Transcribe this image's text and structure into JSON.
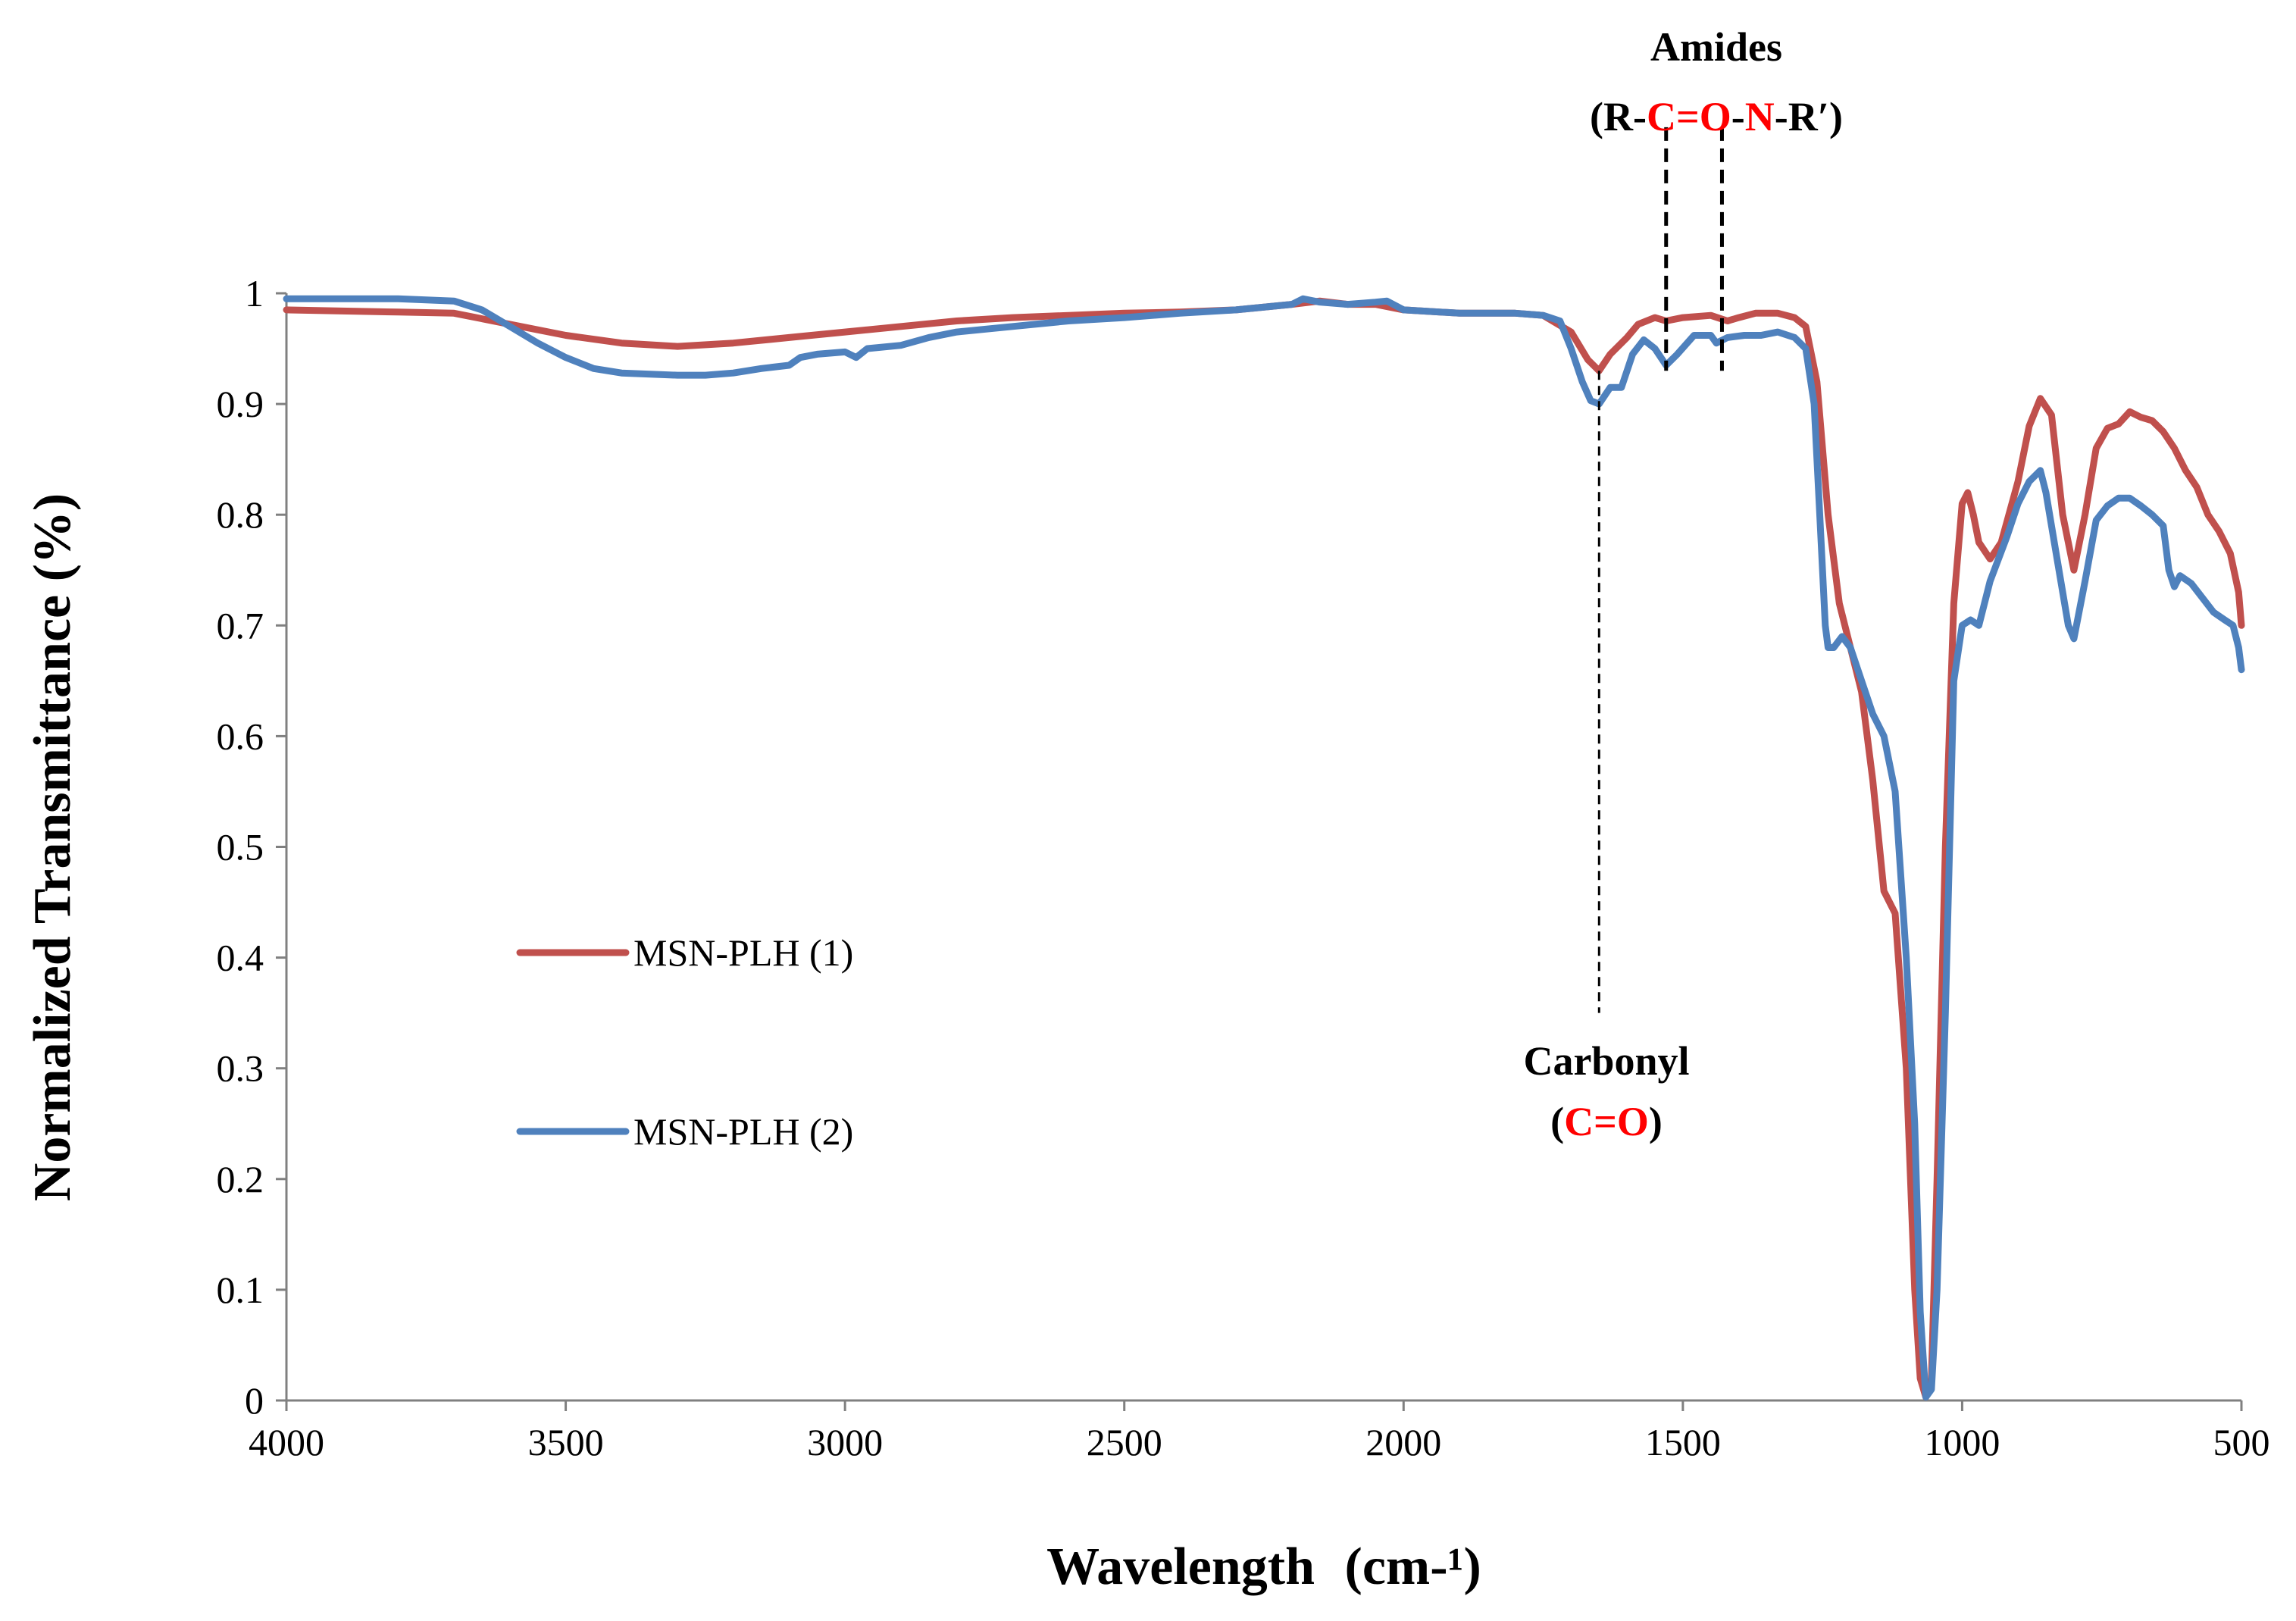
{
  "chart_data": {
    "type": "line",
    "title": "",
    "xlabel": "Wavelength",
    "xlabel_unit": "(cm-¹)",
    "ylabel": "Normalized Transmittance (%)",
    "xlim": [
      4000,
      500
    ],
    "ylim": [
      0,
      1
    ],
    "x_ticks": [
      "4000",
      "3500",
      "3000",
      "2500",
      "2000",
      "1500",
      "1000",
      "500"
    ],
    "x_tick_values": [
      4000,
      3500,
      3000,
      2500,
      2000,
      1500,
      1000,
      500
    ],
    "y_ticks": [
      "0",
      "0.1",
      "0.2",
      "0.3",
      "0.4",
      "0.5",
      "0.6",
      "0.7",
      "0.8",
      "0.9",
      "1"
    ],
    "y_tick_values": [
      0,
      0.1,
      0.2,
      0.3,
      0.4,
      0.5,
      0.6,
      0.7,
      0.8,
      0.9,
      1
    ],
    "grid": false,
    "legend_position": "left-center",
    "series": [
      {
        "name": "MSN-PLH (1)",
        "color": "#c0504d",
        "points": [
          [
            4000,
            0.985
          ],
          [
            3800,
            0.983
          ],
          [
            3700,
            0.982
          ],
          [
            3600,
            0.972
          ],
          [
            3500,
            0.962
          ],
          [
            3400,
            0.955
          ],
          [
            3300,
            0.952
          ],
          [
            3200,
            0.955
          ],
          [
            3100,
            0.96
          ],
          [
            3000,
            0.965
          ],
          [
            2900,
            0.97
          ],
          [
            2800,
            0.975
          ],
          [
            2700,
            0.978
          ],
          [
            2600,
            0.98
          ],
          [
            2500,
            0.982
          ],
          [
            2400,
            0.983
          ],
          [
            2300,
            0.985
          ],
          [
            2200,
            0.99
          ],
          [
            2150,
            0.993
          ],
          [
            2100,
            0.99
          ],
          [
            2050,
            0.99
          ],
          [
            2000,
            0.985
          ],
          [
            1900,
            0.982
          ],
          [
            1800,
            0.982
          ],
          [
            1750,
            0.98
          ],
          [
            1700,
            0.965
          ],
          [
            1670,
            0.94
          ],
          [
            1650,
            0.93
          ],
          [
            1630,
            0.945
          ],
          [
            1600,
            0.96
          ],
          [
            1580,
            0.972
          ],
          [
            1550,
            0.978
          ],
          [
            1530,
            0.975
          ],
          [
            1500,
            0.978
          ],
          [
            1450,
            0.98
          ],
          [
            1420,
            0.975
          ],
          [
            1400,
            0.978
          ],
          [
            1370,
            0.982
          ],
          [
            1330,
            0.982
          ],
          [
            1300,
            0.978
          ],
          [
            1280,
            0.97
          ],
          [
            1260,
            0.92
          ],
          [
            1240,
            0.8
          ],
          [
            1220,
            0.72
          ],
          [
            1200,
            0.68
          ],
          [
            1180,
            0.64
          ],
          [
            1160,
            0.56
          ],
          [
            1140,
            0.46
          ],
          [
            1120,
            0.44
          ],
          [
            1100,
            0.3
          ],
          [
            1085,
            0.1
          ],
          [
            1075,
            0.02
          ],
          [
            1065,
            0.003
          ],
          [
            1055,
            0.02
          ],
          [
            1045,
            0.2
          ],
          [
            1030,
            0.5
          ],
          [
            1015,
            0.72
          ],
          [
            1000,
            0.81
          ],
          [
            990,
            0.82
          ],
          [
            980,
            0.8
          ],
          [
            970,
            0.775
          ],
          [
            950,
            0.76
          ],
          [
            930,
            0.775
          ],
          [
            900,
            0.83
          ],
          [
            880,
            0.88
          ],
          [
            860,
            0.905
          ],
          [
            840,
            0.89
          ],
          [
            820,
            0.8
          ],
          [
            800,
            0.75
          ],
          [
            780,
            0.8
          ],
          [
            760,
            0.86
          ],
          [
            740,
            0.878
          ],
          [
            720,
            0.882
          ],
          [
            700,
            0.893
          ],
          [
            680,
            0.888
          ],
          [
            660,
            0.885
          ],
          [
            640,
            0.875
          ],
          [
            620,
            0.86
          ],
          [
            600,
            0.84
          ],
          [
            580,
            0.825
          ],
          [
            560,
            0.8
          ],
          [
            540,
            0.785
          ],
          [
            520,
            0.765
          ],
          [
            505,
            0.73
          ],
          [
            500,
            0.7
          ]
        ]
      },
      {
        "name": "MSN-PLH (2)",
        "color": "#4f81bd",
        "points": [
          [
            4000,
            0.995
          ],
          [
            3900,
            0.995
          ],
          [
            3800,
            0.995
          ],
          [
            3700,
            0.993
          ],
          [
            3650,
            0.985
          ],
          [
            3600,
            0.97
          ],
          [
            3550,
            0.955
          ],
          [
            3500,
            0.942
          ],
          [
            3450,
            0.932
          ],
          [
            3400,
            0.928
          ],
          [
            3300,
            0.926
          ],
          [
            3250,
            0.926
          ],
          [
            3200,
            0.928
          ],
          [
            3150,
            0.932
          ],
          [
            3100,
            0.935
          ],
          [
            3080,
            0.942
          ],
          [
            3050,
            0.945
          ],
          [
            3000,
            0.947
          ],
          [
            2980,
            0.942
          ],
          [
            2960,
            0.95
          ],
          [
            2900,
            0.953
          ],
          [
            2850,
            0.96
          ],
          [
            2800,
            0.965
          ],
          [
            2700,
            0.97
          ],
          [
            2600,
            0.975
          ],
          [
            2500,
            0.978
          ],
          [
            2400,
            0.982
          ],
          [
            2300,
            0.985
          ],
          [
            2200,
            0.99
          ],
          [
            2180,
            0.995
          ],
          [
            2150,
            0.992
          ],
          [
            2100,
            0.99
          ],
          [
            2050,
            0.992
          ],
          [
            2030,
            0.993
          ],
          [
            2000,
            0.985
          ],
          [
            1900,
            0.982
          ],
          [
            1800,
            0.982
          ],
          [
            1750,
            0.98
          ],
          [
            1720,
            0.975
          ],
          [
            1700,
            0.95
          ],
          [
            1680,
            0.92
          ],
          [
            1665,
            0.903
          ],
          [
            1650,
            0.9
          ],
          [
            1630,
            0.915
          ],
          [
            1610,
            0.915
          ],
          [
            1590,
            0.945
          ],
          [
            1570,
            0.958
          ],
          [
            1550,
            0.95
          ],
          [
            1530,
            0.935
          ],
          [
            1510,
            0.945
          ],
          [
            1480,
            0.962
          ],
          [
            1450,
            0.962
          ],
          [
            1440,
            0.955
          ],
          [
            1420,
            0.96
          ],
          [
            1390,
            0.962
          ],
          [
            1360,
            0.962
          ],
          [
            1330,
            0.965
          ],
          [
            1300,
            0.96
          ],
          [
            1280,
            0.95
          ],
          [
            1265,
            0.9
          ],
          [
            1255,
            0.8
          ],
          [
            1245,
            0.7
          ],
          [
            1240,
            0.68
          ],
          [
            1230,
            0.68
          ],
          [
            1215,
            0.69
          ],
          [
            1200,
            0.68
          ],
          [
            1180,
            0.65
          ],
          [
            1160,
            0.62
          ],
          [
            1140,
            0.6
          ],
          [
            1120,
            0.55
          ],
          [
            1100,
            0.4
          ],
          [
            1085,
            0.25
          ],
          [
            1075,
            0.08
          ],
          [
            1065,
            0.003
          ],
          [
            1055,
            0.01
          ],
          [
            1045,
            0.1
          ],
          [
            1030,
            0.35
          ],
          [
            1015,
            0.65
          ],
          [
            1000,
            0.7
          ],
          [
            985,
            0.705
          ],
          [
            970,
            0.7
          ],
          [
            950,
            0.74
          ],
          [
            920,
            0.78
          ],
          [
            900,
            0.81
          ],
          [
            880,
            0.83
          ],
          [
            860,
            0.84
          ],
          [
            850,
            0.82
          ],
          [
            830,
            0.76
          ],
          [
            810,
            0.7
          ],
          [
            800,
            0.688
          ],
          [
            780,
            0.74
          ],
          [
            760,
            0.795
          ],
          [
            740,
            0.808
          ],
          [
            720,
            0.815
          ],
          [
            700,
            0.815
          ],
          [
            680,
            0.808
          ],
          [
            660,
            0.8
          ],
          [
            640,
            0.79
          ],
          [
            630,
            0.75
          ],
          [
            620,
            0.735
          ],
          [
            610,
            0.745
          ],
          [
            590,
            0.738
          ],
          [
            570,
            0.725
          ],
          [
            550,
            0.712
          ],
          [
            530,
            0.705
          ],
          [
            515,
            0.7
          ],
          [
            505,
            0.68
          ],
          [
            500,
            0.66
          ]
        ]
      }
    ],
    "annotations": [
      {
        "id": "amides",
        "label_line1": "Amides",
        "label_line2_parts": [
          "(R-",
          "C=O",
          "-",
          "N",
          "-R′)"
        ],
        "highlight_parts": [
          1,
          3
        ],
        "marker_x": [
          1530,
          1430
        ],
        "marker_y_range": [
          0.93,
          1.15
        ]
      },
      {
        "id": "carbonyl",
        "label_line1": "Carbonyl",
        "label_line2_parts": [
          "(",
          "C=O",
          ")"
        ],
        "highlight_parts": [
          1
        ],
        "marker_x": [
          1650
        ],
        "marker_y_range": [
          0.35,
          0.93
        ]
      }
    ]
  }
}
